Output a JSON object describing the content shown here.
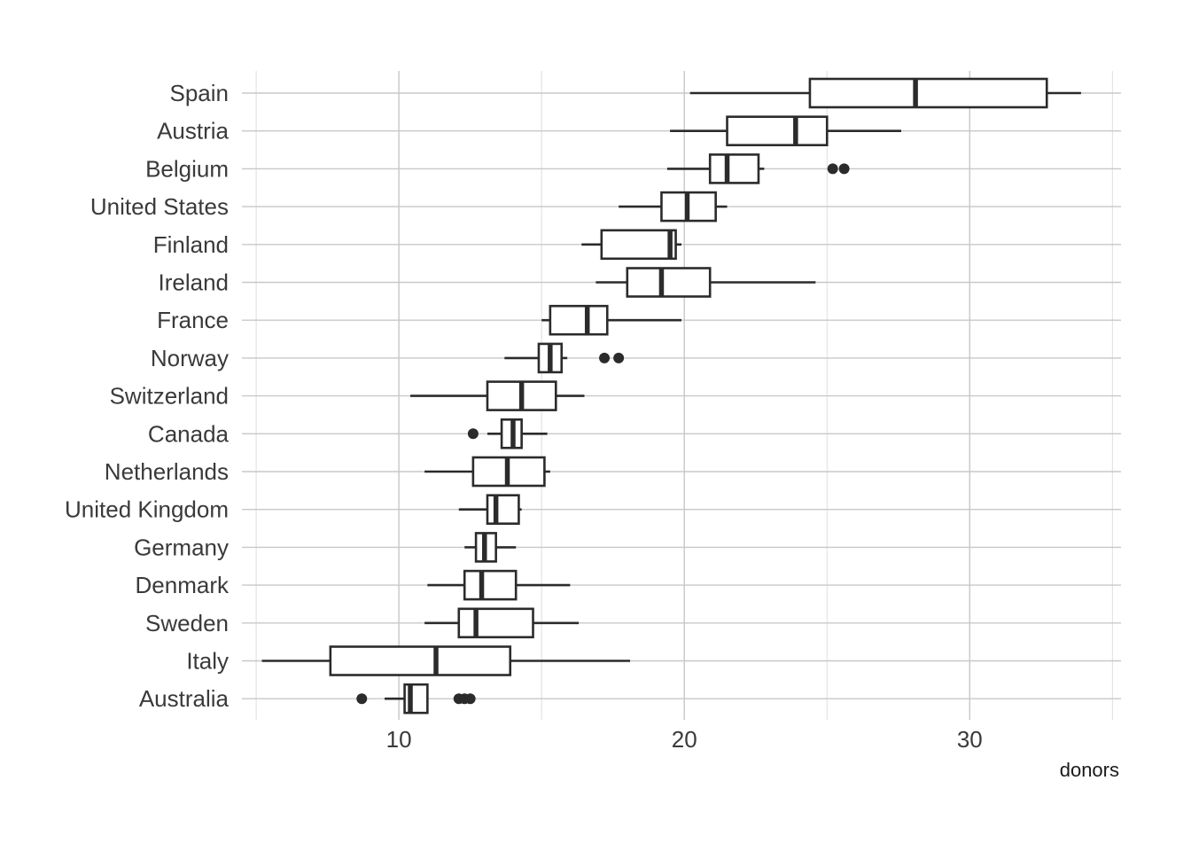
{
  "chart_data": {
    "type": "boxplot",
    "orientation": "horizontal",
    "xlabel": "donors",
    "ylabel": "",
    "title": "",
    "xlim": [
      4.5,
      35.3
    ],
    "x_ticks": [
      10,
      20,
      30
    ],
    "grid": true,
    "legend": "none",
    "colors": {
      "line": "#2b2b2b",
      "box_fill": "#ffffff",
      "grid": "#c8c8c8"
    },
    "categories": [
      "Spain",
      "Austria",
      "Belgium",
      "United States",
      "Finland",
      "Ireland",
      "France",
      "Norway",
      "Switzerland",
      "Canada",
      "Netherlands",
      "United Kingdom",
      "Germany",
      "Denmark",
      "Sweden",
      "Italy",
      "Australia"
    ],
    "boxes": [
      {
        "label": "Spain",
        "min": 20.2,
        "q1": 24.4,
        "median": 28.1,
        "q3": 32.7,
        "max": 33.9,
        "outliers": []
      },
      {
        "label": "Austria",
        "min": 19.5,
        "q1": 21.5,
        "median": 23.9,
        "q3": 25.0,
        "max": 27.6,
        "outliers": []
      },
      {
        "label": "Belgium",
        "min": 19.4,
        "q1": 20.9,
        "median": 21.5,
        "q3": 22.6,
        "max": 22.8,
        "outliers": [
          25.2,
          25.6
        ]
      },
      {
        "label": "United States",
        "min": 17.7,
        "q1": 19.2,
        "median": 20.1,
        "q3": 21.1,
        "max": 21.5,
        "outliers": []
      },
      {
        "label": "Finland",
        "min": 16.4,
        "q1": 17.1,
        "median": 19.5,
        "q3": 19.7,
        "max": 19.9,
        "outliers": []
      },
      {
        "label": "Ireland",
        "min": 16.9,
        "q1": 18.0,
        "median": 19.2,
        "q3": 20.9,
        "max": 24.6,
        "outliers": []
      },
      {
        "label": "France",
        "min": 15.0,
        "q1": 15.3,
        "median": 16.6,
        "q3": 17.3,
        "max": 19.9,
        "outliers": []
      },
      {
        "label": "Norway",
        "min": 13.7,
        "q1": 14.9,
        "median": 15.3,
        "q3": 15.7,
        "max": 15.9,
        "outliers": [
          17.2,
          17.7
        ]
      },
      {
        "label": "Switzerland",
        "min": 10.4,
        "q1": 13.1,
        "median": 14.3,
        "q3": 15.5,
        "max": 16.5,
        "outliers": []
      },
      {
        "label": "Canada",
        "min": 13.1,
        "q1": 13.6,
        "median": 14.0,
        "q3": 14.3,
        "max": 15.2,
        "outliers": [
          12.6
        ]
      },
      {
        "label": "Netherlands",
        "min": 10.9,
        "q1": 12.6,
        "median": 13.8,
        "q3": 15.1,
        "max": 15.3,
        "outliers": []
      },
      {
        "label": "United Kingdom",
        "min": 12.1,
        "q1": 13.1,
        "median": 13.4,
        "q3": 14.2,
        "max": 14.3,
        "outliers": []
      },
      {
        "label": "Germany",
        "min": 12.3,
        "q1": 12.7,
        "median": 13.0,
        "q3": 13.4,
        "max": 14.1,
        "outliers": []
      },
      {
        "label": "Denmark",
        "min": 11.0,
        "q1": 12.3,
        "median": 12.9,
        "q3": 14.1,
        "max": 16.0,
        "outliers": []
      },
      {
        "label": "Sweden",
        "min": 10.9,
        "q1": 12.1,
        "median": 12.7,
        "q3": 14.7,
        "max": 16.3,
        "outliers": []
      },
      {
        "label": "Italy",
        "min": 5.2,
        "q1": 7.6,
        "median": 11.3,
        "q3": 13.9,
        "max": 18.1,
        "outliers": []
      },
      {
        "label": "Australia",
        "min": 9.5,
        "q1": 10.2,
        "median": 10.4,
        "q3": 11.0,
        "max": 11.0,
        "outliers": [
          8.7,
          12.1,
          12.3,
          12.5
        ]
      }
    ]
  }
}
